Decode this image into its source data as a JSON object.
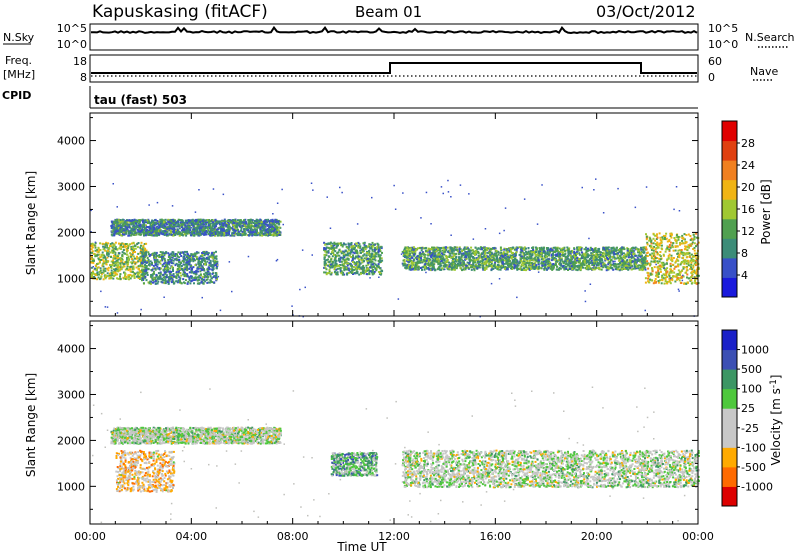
{
  "header": {
    "station": "Kapuskasing (fitACF)",
    "beam": "Beam 01",
    "date": "03/Oct/2012"
  },
  "status_panels": {
    "nsky": {
      "label": "N.Sky",
      "left_ticks": [
        "10^5",
        "10^0"
      ],
      "right_label": "N.Search",
      "right_ticks": [
        "10^5",
        "10^0"
      ]
    },
    "freq": {
      "label_line1": "Freq.",
      "label_line2": "[MHz]",
      "left_ticks": [
        "18",
        "8"
      ],
      "right_label": "Nave",
      "right_ticks": [
        "60",
        "0"
      ]
    },
    "cpid": {
      "label": "CPID",
      "text": "tau (fast) 503"
    }
  },
  "colors": {
    "power_scale": [
      "#1a1adc",
      "#3850c8",
      "#3c8c78",
      "#50a050",
      "#a0c832",
      "#f0b414",
      "#f08020",
      "#e04010",
      "#e00000"
    ],
    "velocity_scale": [
      "#dd0000",
      "#ff6a00",
      "#ffaa00",
      "#c8c8c8",
      "#c8c8c8",
      "#4ec83c",
      "#3c9664",
      "#3c50b4",
      "#1a20c8"
    ],
    "nave_line": "#000000",
    "gray_scatter": "#c0c0bc"
  },
  "chart_data": [
    {
      "type": "heatmap",
      "title": "",
      "xlabel": "",
      "ylabel": "Slant Range [km]",
      "x_ticks": [
        "00:00",
        "04:00",
        "08:00",
        "12:00",
        "16:00",
        "20:00",
        "00:00"
      ],
      "xlim_hours": [
        0,
        24
      ],
      "y_ticks": [
        1000,
        2000,
        3000,
        4000
      ],
      "ylim": [
        180,
        4600
      ],
      "colorbar": {
        "label": "Power [dB]",
        "ticks": [
          "4",
          "8",
          "12",
          "16",
          "20",
          "24",
          "28"
        ],
        "range": [
          0,
          30
        ]
      },
      "echo_bands": [
        {
          "t0": 0.0,
          "t1": 2.2,
          "r0": 1000,
          "r1": 1800,
          "power": 14
        },
        {
          "t0": 0.8,
          "t1": 7.5,
          "r0": 1950,
          "r1": 2300,
          "power": 8
        },
        {
          "t0": 2.0,
          "t1": 5.0,
          "r0": 900,
          "r1": 1600,
          "power": 8
        },
        {
          "t0": 9.2,
          "t1": 11.5,
          "r0": 1100,
          "r1": 1800,
          "power": 10
        },
        {
          "t0": 12.3,
          "t1": 21.9,
          "r0": 1200,
          "r1": 1700,
          "power": 10
        },
        {
          "t0": 21.9,
          "t1": 24.0,
          "r0": 900,
          "r1": 2000,
          "power": 16
        }
      ]
    },
    {
      "type": "heatmap",
      "title": "",
      "xlabel": "Time UT",
      "ylabel": "Slant Range [km]",
      "x_ticks": [
        "00:00",
        "04:00",
        "08:00",
        "12:00",
        "16:00",
        "20:00",
        "00:00"
      ],
      "xlim_hours": [
        0,
        24
      ],
      "y_ticks": [
        1000,
        2000,
        3000,
        4000
      ],
      "ylim": [
        180,
        4600
      ],
      "colorbar": {
        "label": "Velocity [m s^-1]",
        "ticks": [
          "-1000",
          "-500",
          "-100",
          "-25",
          "25",
          "100",
          "500",
          "1000"
        ],
        "range": [
          -1000,
          1000
        ]
      },
      "echo_bands": [
        {
          "t0": 0.8,
          "t1": 7.5,
          "r0": 1950,
          "r1": 2300,
          "velocity": 0
        },
        {
          "t0": 1.0,
          "t1": 3.3,
          "r0": 900,
          "r1": 1800,
          "velocity": -300
        },
        {
          "t0": 9.5,
          "t1": 11.3,
          "r0": 1250,
          "r1": 1750,
          "velocity": 300
        },
        {
          "t0": 12.3,
          "t1": 24.0,
          "r0": 1000,
          "r1": 1800,
          "velocity": 0
        }
      ]
    }
  ]
}
